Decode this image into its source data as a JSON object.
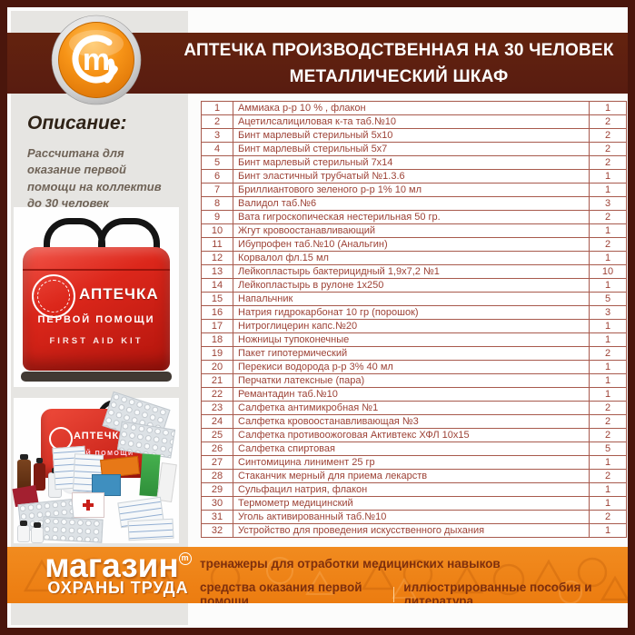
{
  "header": {
    "title_line1": "АПТЕЧКА ПРОИЗВОДСТВЕННАЯ НА 30 ЧЕЛОВЕК",
    "title_line2": "МЕТАЛЛИЧЕСКИЙ ШКАФ"
  },
  "logo": {
    "letter": "m"
  },
  "description": {
    "heading": "Описание:",
    "text": "Рассчитана для оказание первой помощи на коллектив до 30 человек"
  },
  "photos": {
    "bag": {
      "title": "АПТЕЧКА",
      "subtitle": "ПЕРВОЙ ПОМОЩИ",
      "subtitle_en": "FIRST AID KIT"
    },
    "contents_bag": {
      "title": "АПТЕЧКА",
      "subtitle": "ПЕРВОЙ ПОМОЩИ"
    }
  },
  "table": {
    "rows": [
      {
        "num": "1",
        "name": "Аммиака р-р 10 % , флакон",
        "qty": "1"
      },
      {
        "num": "2",
        "name": "Ацетилсалициловая к-та таб.№10",
        "qty": "2"
      },
      {
        "num": "3",
        "name": "Бинт марлевый стерильный 5х10",
        "qty": "2"
      },
      {
        "num": "4",
        "name": "Бинт марлевый стерильный 5х7",
        "qty": "2"
      },
      {
        "num": "5",
        "name": "Бинт марлевый стерильный 7х14",
        "qty": "2"
      },
      {
        "num": "6",
        "name": "Бинт эластичный трубчатый №1.3.6",
        "qty": "1"
      },
      {
        "num": "7",
        "name": "Бриллиантового зеленого р-р 1% 10 мл",
        "qty": "1"
      },
      {
        "num": "8",
        "name": "Валидол таб.№6",
        "qty": "3"
      },
      {
        "num": "9",
        "name": "Вата гигроскопическая нестерильная 50 гр.",
        "qty": "2"
      },
      {
        "num": "10",
        "name": "Жгут кровоостанавливающий",
        "qty": "1"
      },
      {
        "num": "11",
        "name": "Ибупрофен таб.№10 (Анальгин)",
        "qty": "2"
      },
      {
        "num": "12",
        "name": "Корвалол фл.15 мл",
        "qty": "1"
      },
      {
        "num": "13",
        "name": "Лейкопластырь бактерицидный 1,9х7,2 №1",
        "qty": "10"
      },
      {
        "num": "14",
        "name": "Лейкопластырь в рулоне 1х250",
        "qty": "1"
      },
      {
        "num": "15",
        "name": "Напальчник",
        "qty": "5"
      },
      {
        "num": "16",
        "name": "Натрия гидрокарбонат 10 гр (порошок)",
        "qty": "3"
      },
      {
        "num": "17",
        "name": "Нитроглицерин капс.№20",
        "qty": "1"
      },
      {
        "num": "18",
        "name": "Ножницы тупоконечные",
        "qty": "1"
      },
      {
        "num": "19",
        "name": "Пакет гипотермический",
        "qty": "2"
      },
      {
        "num": "20",
        "name": "Перекиси водорода р-р 3% 40 мл",
        "qty": "1"
      },
      {
        "num": "21",
        "name": "Перчатки латексные (пара)",
        "qty": "1"
      },
      {
        "num": "22",
        "name": "Ремантадин таб.№10",
        "qty": "1"
      },
      {
        "num": "23",
        "name": "Салфетка антимикробная №1",
        "qty": "2"
      },
      {
        "num": "24",
        "name": "Салфетка кровоостанавливающая №3",
        "qty": "2"
      },
      {
        "num": "25",
        "name": "Салфетка противоожоговая Активтекс ХФЛ 10х15",
        "qty": "2"
      },
      {
        "num": "26",
        "name": "Салфетка спиртовая",
        "qty": "5"
      },
      {
        "num": "27",
        "name": "Синтомицина линимент 25 гр",
        "qty": "1"
      },
      {
        "num": "28",
        "name": "Стаканчик мерный для приема лекарств",
        "qty": "2"
      },
      {
        "num": "29",
        "name": "Сульфацил натрия, флакон",
        "qty": "1"
      },
      {
        "num": "30",
        "name": "Термометр медицинский",
        "qty": "1"
      },
      {
        "num": "31",
        "name": "Уголь активированный таб.№10",
        "qty": "2"
      },
      {
        "num": "32",
        "name": "Устройство для проведения искусственного дыхания",
        "qty": "1"
      }
    ]
  },
  "footer": {
    "brand_top": "магазин",
    "brand_mark": "m",
    "brand_bottom": "ОХРАНЫ ТРУДА",
    "line1": "тренажеры для отработки медицинских навыков",
    "line2_left": "средства оказания первой помощи",
    "line2_right": "иллюстрированные пособия и литература"
  },
  "colors": {
    "outer_border": "#4a160c",
    "title_band": "#5e2012",
    "accent_orange": "#ef8214",
    "table_text": "#9d4236",
    "table_border": "#a85a4d",
    "left_panel_gray": "#e6e5e2",
    "bag_red": "#d9251a"
  }
}
